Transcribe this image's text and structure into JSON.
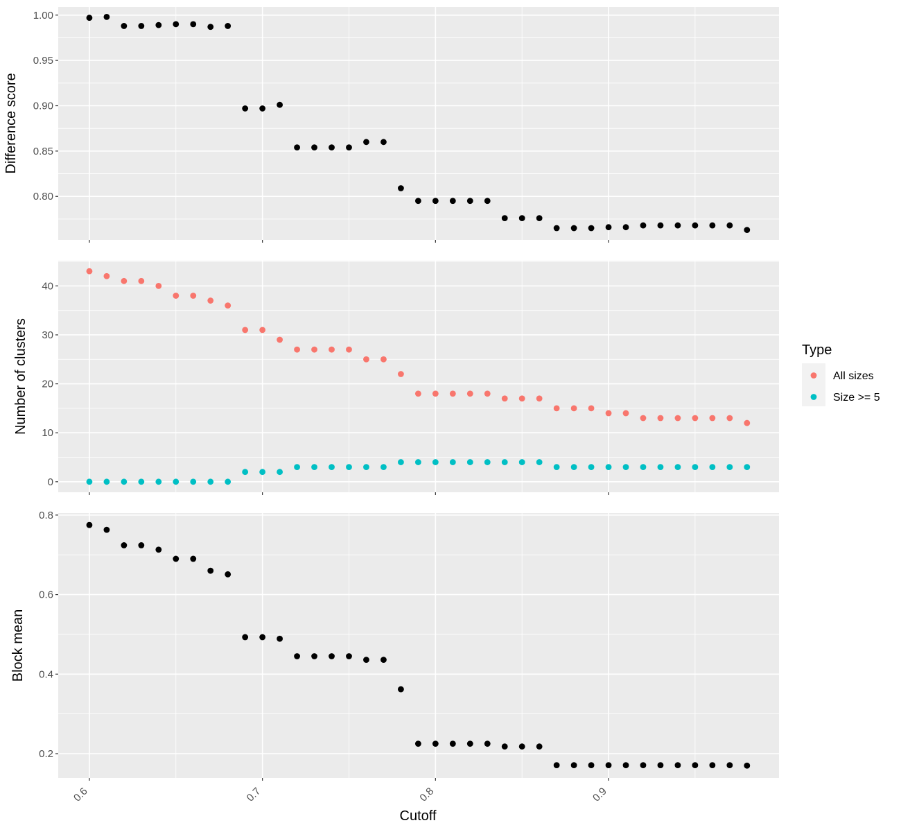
{
  "chart_data": [
    {
      "panel": "top",
      "type": "scatter",
      "ylabel": "Difference score",
      "xlim": [
        0.582,
        0.9985
      ],
      "ylim": [
        0.752,
        1.009
      ],
      "yticks": [
        0.8,
        0.85,
        0.9,
        0.95,
        1.0
      ],
      "ytick_labels": [
        "0.80",
        "0.85",
        "0.90",
        "0.95",
        "1.00"
      ],
      "series": [
        {
          "color": "#000000",
          "points": [
            [
              0.6,
              0.997
            ],
            [
              0.61,
              0.998
            ],
            [
              0.62,
              0.988
            ],
            [
              0.63,
              0.988
            ],
            [
              0.64,
              0.989
            ],
            [
              0.65,
              0.99
            ],
            [
              0.66,
              0.99
            ],
            [
              0.67,
              0.987
            ],
            [
              0.68,
              0.988
            ],
            [
              0.69,
              0.897
            ],
            [
              0.7,
              0.897
            ],
            [
              0.71,
              0.901
            ],
            [
              0.72,
              0.854
            ],
            [
              0.73,
              0.854
            ],
            [
              0.74,
              0.854
            ],
            [
              0.75,
              0.854
            ],
            [
              0.76,
              0.86
            ],
            [
              0.77,
              0.86
            ],
            [
              0.78,
              0.809
            ],
            [
              0.79,
              0.795
            ],
            [
              0.8,
              0.795
            ],
            [
              0.81,
              0.795
            ],
            [
              0.82,
              0.795
            ],
            [
              0.83,
              0.795
            ],
            [
              0.84,
              0.776
            ],
            [
              0.85,
              0.776
            ],
            [
              0.86,
              0.776
            ],
            [
              0.87,
              0.765
            ],
            [
              0.88,
              0.765
            ],
            [
              0.89,
              0.765
            ],
            [
              0.9,
              0.766
            ],
            [
              0.91,
              0.766
            ],
            [
              0.92,
              0.768
            ],
            [
              0.93,
              0.768
            ],
            [
              0.94,
              0.768
            ],
            [
              0.95,
              0.768
            ],
            [
              0.96,
              0.768
            ],
            [
              0.97,
              0.768
            ],
            [
              0.98,
              0.763
            ]
          ]
        }
      ]
    },
    {
      "panel": "middle",
      "type": "scatter",
      "ylabel": "Number of clusters",
      "xlim": [
        0.582,
        0.9985
      ],
      "ylim": [
        -2.15,
        45.15
      ],
      "yticks": [
        0,
        10,
        20,
        30,
        40
      ],
      "ytick_labels": [
        "0",
        "10",
        "20",
        "30",
        "40"
      ],
      "series": [
        {
          "name": "All sizes",
          "color": "#F8766D",
          "points": [
            [
              0.6,
              43
            ],
            [
              0.61,
              42
            ],
            [
              0.62,
              41
            ],
            [
              0.63,
              41
            ],
            [
              0.64,
              40
            ],
            [
              0.65,
              38
            ],
            [
              0.66,
              38
            ],
            [
              0.67,
              37
            ],
            [
              0.68,
              36
            ],
            [
              0.69,
              31
            ],
            [
              0.7,
              31
            ],
            [
              0.71,
              29
            ],
            [
              0.72,
              27
            ],
            [
              0.73,
              27
            ],
            [
              0.74,
              27
            ],
            [
              0.75,
              27
            ],
            [
              0.76,
              25
            ],
            [
              0.77,
              25
            ],
            [
              0.78,
              22
            ],
            [
              0.79,
              18
            ],
            [
              0.8,
              18
            ],
            [
              0.81,
              18
            ],
            [
              0.82,
              18
            ],
            [
              0.83,
              18
            ],
            [
              0.84,
              17
            ],
            [
              0.85,
              17
            ],
            [
              0.86,
              17
            ],
            [
              0.87,
              15
            ],
            [
              0.88,
              15
            ],
            [
              0.89,
              15
            ],
            [
              0.9,
              14
            ],
            [
              0.91,
              14
            ],
            [
              0.92,
              13
            ],
            [
              0.93,
              13
            ],
            [
              0.94,
              13
            ],
            [
              0.95,
              13
            ],
            [
              0.96,
              13
            ],
            [
              0.97,
              13
            ],
            [
              0.98,
              12
            ]
          ]
        },
        {
          "name": "Size >= 5",
          "color": "#00BFC4",
          "points": [
            [
              0.6,
              0
            ],
            [
              0.61,
              0
            ],
            [
              0.62,
              0
            ],
            [
              0.63,
              0
            ],
            [
              0.64,
              0
            ],
            [
              0.65,
              0
            ],
            [
              0.66,
              0
            ],
            [
              0.67,
              0
            ],
            [
              0.68,
              0
            ],
            [
              0.69,
              2
            ],
            [
              0.7,
              2
            ],
            [
              0.71,
              2
            ],
            [
              0.72,
              3
            ],
            [
              0.73,
              3
            ],
            [
              0.74,
              3
            ],
            [
              0.75,
              3
            ],
            [
              0.76,
              3
            ],
            [
              0.77,
              3
            ],
            [
              0.78,
              4
            ],
            [
              0.79,
              4
            ],
            [
              0.8,
              4
            ],
            [
              0.81,
              4
            ],
            [
              0.82,
              4
            ],
            [
              0.83,
              4
            ],
            [
              0.84,
              4
            ],
            [
              0.85,
              4
            ],
            [
              0.86,
              4
            ],
            [
              0.87,
              3
            ],
            [
              0.88,
              3
            ],
            [
              0.89,
              3
            ],
            [
              0.9,
              3
            ],
            [
              0.91,
              3
            ],
            [
              0.92,
              3
            ],
            [
              0.93,
              3
            ],
            [
              0.94,
              3
            ],
            [
              0.95,
              3
            ],
            [
              0.96,
              3
            ],
            [
              0.97,
              3
            ],
            [
              0.98,
              3
            ]
          ]
        }
      ]
    },
    {
      "panel": "bottom",
      "type": "scatter",
      "ylabel": "Block mean",
      "xlabel": "Cutoff",
      "xlim": [
        0.582,
        0.9985
      ],
      "ylim": [
        0.139,
        0.805
      ],
      "yticks": [
        0.2,
        0.4,
        0.6,
        0.8
      ],
      "ytick_labels": [
        "0.2",
        "0.4",
        "0.6",
        "0.8"
      ],
      "series": [
        {
          "color": "#000000",
          "points": [
            [
              0.6,
              0.775
            ],
            [
              0.61,
              0.763
            ],
            [
              0.62,
              0.724
            ],
            [
              0.63,
              0.724
            ],
            [
              0.64,
              0.713
            ],
            [
              0.65,
              0.69
            ],
            [
              0.66,
              0.69
            ],
            [
              0.67,
              0.66
            ],
            [
              0.68,
              0.651
            ],
            [
              0.69,
              0.493
            ],
            [
              0.7,
              0.493
            ],
            [
              0.71,
              0.489
            ],
            [
              0.72,
              0.445
            ],
            [
              0.73,
              0.445
            ],
            [
              0.74,
              0.445
            ],
            [
              0.75,
              0.445
            ],
            [
              0.76,
              0.436
            ],
            [
              0.77,
              0.436
            ],
            [
              0.78,
              0.362
            ],
            [
              0.79,
              0.225
            ],
            [
              0.8,
              0.225
            ],
            [
              0.81,
              0.225
            ],
            [
              0.82,
              0.225
            ],
            [
              0.83,
              0.225
            ],
            [
              0.84,
              0.218
            ],
            [
              0.85,
              0.218
            ],
            [
              0.86,
              0.218
            ],
            [
              0.87,
              0.171
            ],
            [
              0.88,
              0.171
            ],
            [
              0.89,
              0.171
            ],
            [
              0.9,
              0.171
            ],
            [
              0.91,
              0.171
            ],
            [
              0.92,
              0.171
            ],
            [
              0.93,
              0.171
            ],
            [
              0.94,
              0.171
            ],
            [
              0.95,
              0.171
            ],
            [
              0.96,
              0.171
            ],
            [
              0.97,
              0.171
            ],
            [
              0.98,
              0.17
            ]
          ]
        }
      ]
    }
  ],
  "shared_x": {
    "ticks": [
      0.6,
      0.7,
      0.8,
      0.9
    ],
    "tick_labels": [
      "0.6",
      "0.7",
      "0.8",
      "0.9"
    ],
    "label": "Cutoff"
  },
  "legend": {
    "title": "Type",
    "items": [
      {
        "label": "All sizes",
        "color": "#F8766D"
      },
      {
        "label": "Size >= 5",
        "color": "#00BFC4"
      }
    ]
  },
  "style": {
    "panel_background": "#EBEBEB",
    "grid_color": "#FFFFFF",
    "point_color_default": "#000000"
  }
}
